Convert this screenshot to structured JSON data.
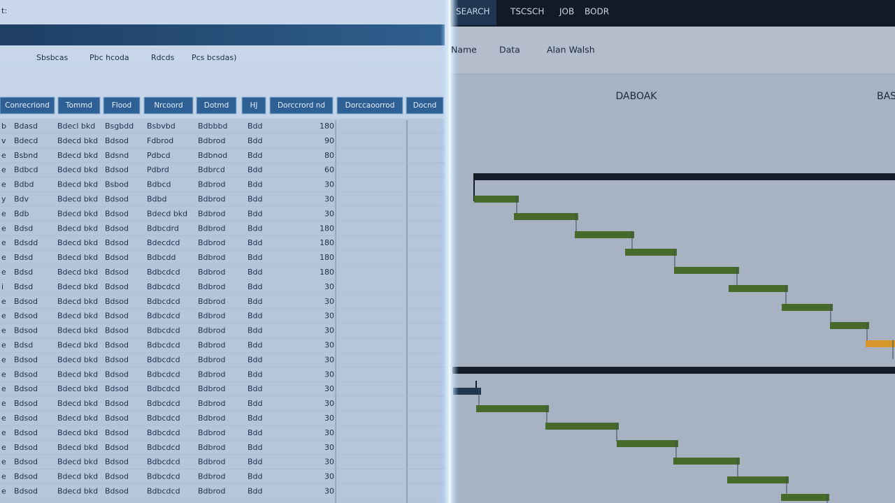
{
  "left_panel": {
    "window_label": "t:",
    "toolbar": [
      "Sbsbcas",
      "Pbc hcoda",
      "Rdcds",
      "Pcs bcsdas)"
    ],
    "table": {
      "headers": [
        "Conrecriond",
        "Tommd",
        "Flood",
        "Nrcoord",
        "Dotmd",
        "HJ",
        "Dorccrord nd",
        "Dorccaoorrod",
        "Docnd"
      ],
      "rows": [
        [
          "b",
          "Bdasd",
          "Bdecl bkd",
          "Bsgbdd",
          "Bsbvbd",
          "Bdbbbd",
          "Bdd",
          "180"
        ],
        [
          "v",
          "Bdecd",
          "Bdecd bkd",
          "Bdsod",
          "Fdbrod",
          "Bdbrod",
          "Bdd",
          "90"
        ],
        [
          "e",
          "Bsbnd",
          "Bdecd bkd",
          "Bdsnd",
          "Pdbcd",
          "Bdbnod",
          "Bdd",
          "80"
        ],
        [
          "e",
          "Bdbcd",
          "Bdecd bkd",
          "Bdsod",
          "Pdbrd",
          "Bdbrcd",
          "Bdd",
          "60"
        ],
        [
          "e",
          "Bdbd",
          "Bdecd bkd",
          "Bsbod",
          "Bdbcd",
          "Bdbrod",
          "Bdd",
          "30"
        ],
        [
          "y",
          "Bdv",
          "Bdecd bkd",
          "Bdsod",
          "Bdbd",
          "Bdbrod",
          "Bdd",
          "30"
        ],
        [
          "e",
          "Bdb",
          "Bdecd bkd",
          "Bdsod",
          "Bdecd bkd",
          "Bdbrod",
          "Bdd",
          "30"
        ],
        [
          "e",
          "Bdsd",
          "Bdecd bkd",
          "Bdsod",
          "Bdbcdrd",
          "Bdbrod",
          "Bdd",
          "180"
        ],
        [
          "e",
          "Bdsdd",
          "Bdecd bkd",
          "Bdsod",
          "Bdecdcd",
          "Bdbrod",
          "Bdd",
          "180"
        ],
        [
          "e",
          "Bdsd",
          "Bdecd bkd",
          "Bdsod",
          "Bdbcdd",
          "Bdbrod",
          "Bdd",
          "180"
        ],
        [
          "e",
          "Bdsd",
          "Bdecd bkd",
          "Bdsod",
          "Bdbcdcd",
          "Bdbrod",
          "Bdd",
          "180"
        ],
        [
          "i",
          "Bdsd",
          "Bdecd bkd",
          "Bdsod",
          "Bdbcdcd",
          "Bdbrod",
          "Bdd",
          "30"
        ],
        [
          "e",
          "Bdsod",
          "Bdecd bkd",
          "Bdsod",
          "Bdbcdcd",
          "Bdbrod",
          "Bdd",
          "30"
        ],
        [
          "e",
          "Bdsod",
          "Bdecd bkd",
          "Bdsod",
          "Bdbcdcd",
          "Bdbrod",
          "Bdd",
          "30"
        ],
        [
          "e",
          "Bdsod",
          "Bdecd bkd",
          "Bdsod",
          "Bdbcdcd",
          "Bdbrod",
          "Bdd",
          "30"
        ],
        [
          "e",
          "Bdsd",
          "Bdecd bkd",
          "Bdsod",
          "Bdbcdcd",
          "Bdbrod",
          "Bdd",
          "30"
        ],
        [
          "e",
          "Bdsod",
          "Bdecd bkd",
          "Bdsod",
          "Bdbcdcd",
          "Bdbrod",
          "Bdd",
          "30"
        ],
        [
          "e",
          "Bdsod",
          "Bdecd bkd",
          "Bdsod",
          "Bdbcdcd",
          "Bdbrod",
          "Bdd",
          "30"
        ],
        [
          "e",
          "Bdsod",
          "Bdecd bkd",
          "Bdsod",
          "Bdbcdcd",
          "Bdbrod",
          "Bdd",
          "30"
        ],
        [
          "e",
          "Bdsod",
          "Bdecd bkd",
          "Bdsod",
          "Bdbcdcd",
          "Bdbrod",
          "Bdd",
          "30"
        ],
        [
          "e",
          "Bdsod",
          "Bdecd bkd",
          "Bdsod",
          "Bdbcdcd",
          "Bdbrod",
          "Bdd",
          "30"
        ],
        [
          "e",
          "Bdsod",
          "Bdecd bkd",
          "Bdsod",
          "Bdbcdcd",
          "Bdbrod",
          "Bdd",
          "30"
        ],
        [
          "e",
          "Bdsod",
          "Bdecd bkd",
          "Bdsod",
          "Bdbcdcd",
          "Bdbrod",
          "Bdd",
          "30"
        ],
        [
          "e",
          "Bdsod",
          "Bdecd bkd",
          "Bdsod",
          "Bdbcdcd",
          "Bdbrod",
          "Bdd",
          "30"
        ],
        [
          "e",
          "Bdsod",
          "Bdecd bkd",
          "Bdsod",
          "Bdbcdcd",
          "Bdbrod",
          "Bdd",
          "30"
        ],
        [
          "e",
          "Bdsod",
          "Bdecd bkd",
          "Bdsod",
          "Bdbcdcd",
          "Bdbrod",
          "Bdd",
          "30"
        ]
      ]
    }
  },
  "right_panel": {
    "tabs": [
      "SEARCH",
      "TSCSCH",
      "JOB",
      "BODR"
    ],
    "subnav": [
      "Name",
      "Data",
      "Alan Walsh"
    ],
    "heading": "DABOAK",
    "heading_right": "BAS"
  }
}
